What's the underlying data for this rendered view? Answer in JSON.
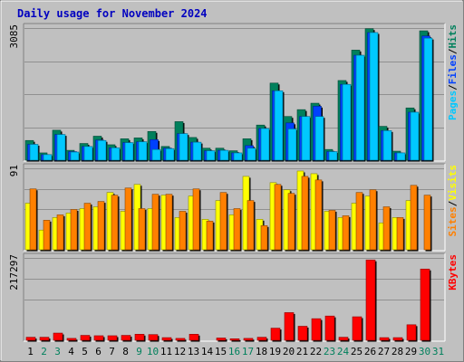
{
  "title": "Daily usage for November 2024",
  "colors": {
    "background": "#c0c0c0",
    "hits": "#00805c",
    "files": "#0040ff",
    "pages": "#00c8ff",
    "visits": "#ffff00",
    "sites": "#ff8000",
    "kbytes": "#ff0000",
    "title": "#0000c0",
    "weekday": "#000000",
    "weekend": "#00805c"
  },
  "chart_data": {
    "type": "bar",
    "categories": [
      "1",
      "2",
      "3",
      "4",
      "5",
      "6",
      "7",
      "8",
      "9",
      "10",
      "11",
      "12",
      "13",
      "14",
      "15",
      "16",
      "17",
      "18",
      "19",
      "20",
      "21",
      "22",
      "23",
      "24",
      "25",
      "26",
      "27",
      "28",
      "29",
      "30",
      "31"
    ],
    "weekend_days": [
      "2",
      "3",
      "9",
      "10",
      "16",
      "17",
      "23",
      "24",
      "30",
      "31"
    ],
    "panels": [
      {
        "id": "hits-files-pages",
        "max_label": "3085",
        "ymax": 3085,
        "legend": [
          {
            "label": "Pages",
            "color": "#00c8ff"
          },
          {
            "label": "Files",
            "color": "#0040ff"
          },
          {
            "label": "Hits",
            "color": "#00805c"
          }
        ],
        "series": [
          {
            "name": "Hits",
            "values": [
              460,
              170,
              700,
              230,
              390,
              560,
              360,
              500,
              520,
              670,
              320,
              900,
              530,
              280,
              280,
              220,
              500,
              820,
              1800,
              1020,
              1180,
              1330,
              250,
              1860,
              2570,
              3070,
              790,
              210,
              1220,
              3020,
              0
            ]
          },
          {
            "name": "Files",
            "values": [
              370,
              130,
              600,
              200,
              320,
              470,
              290,
              410,
              430,
              480,
              280,
              620,
              420,
              220,
              230,
              170,
              340,
              740,
              1620,
              870,
              1020,
              1260,
              200,
              1770,
              2450,
              2980,
              690,
              170,
              1120,
              2900,
              0
            ]
          },
          {
            "name": "Pages",
            "values": [
              370,
              130,
              600,
              190,
              320,
              460,
              290,
              410,
              430,
              250,
              270,
              620,
              420,
              220,
              230,
              170,
              280,
              740,
              1620,
              730,
              1020,
              1020,
              200,
              1770,
              2450,
              2980,
              690,
              170,
              1120,
              2850,
              0
            ]
          }
        ]
      },
      {
        "id": "visits-sites",
        "max_label": "91",
        "ymax": 91,
        "legend": [
          {
            "label": "Sites",
            "color": "#ff8000"
          },
          {
            "label": "Visits",
            "color": "#ffff00"
          }
        ],
        "series": [
          {
            "name": "Visits",
            "values": [
              52,
              22,
              36,
              41,
              46,
              48,
              64,
              43,
              73,
              46,
              61,
              36,
              60,
              34,
              55,
              39,
              82,
              34,
              75,
              67,
              88,
              85,
              43,
              36,
              52,
              60,
              30,
              36,
              55,
              0,
              0
            ]
          },
          {
            "name": "Sites",
            "values": [
              68,
              33,
              39,
              45,
              52,
              54,
              61,
              69,
              46,
              62,
              62,
              43,
              68,
              32,
              64,
              46,
              55,
              27,
              73,
              63,
              82,
              78,
              44,
              38,
              64,
              67,
              48,
              36,
              72,
              61,
              0
            ]
          }
        ]
      },
      {
        "id": "kbytes",
        "max_label": "217297",
        "ymax": 217297,
        "legend": [
          {
            "label": "KBytes",
            "color": "#ff0000"
          }
        ],
        "series": [
          {
            "name": "KBytes",
            "values": [
              8000,
              8000,
              19000,
              5000,
              13000,
              12000,
              12000,
              13000,
              16000,
              15000,
              7000,
              5000,
              16000,
              1000,
              6000,
              4000,
              5000,
              8000,
              32000,
              73000,
              37000,
              57000,
              64000,
              8000,
              62000,
              212000,
              7000,
              7000,
              41000,
              188000,
              0
            ]
          }
        ]
      }
    ]
  }
}
